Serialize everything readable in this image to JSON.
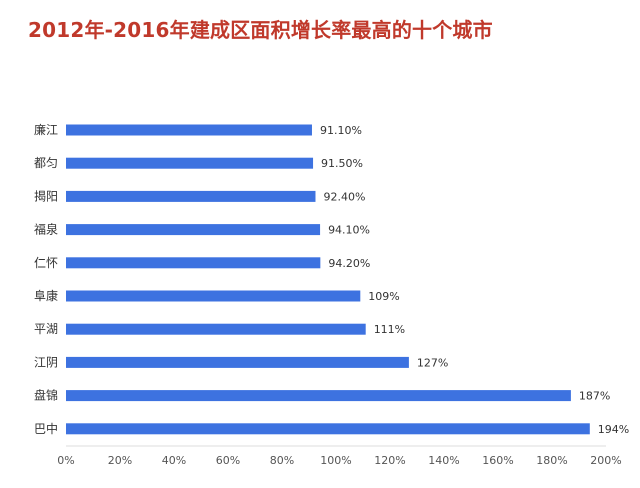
{
  "title": "2012年-2016年建成区面积增长率最高的十个城市",
  "chart_data": {
    "type": "bar",
    "orientation": "horizontal",
    "categories": [
      "廉江",
      "都匀",
      "揭阳",
      "福泉",
      "仁怀",
      "阜康",
      "平湖",
      "江阴",
      "盘锦",
      "巴中"
    ],
    "values": [
      91.1,
      91.5,
      92.4,
      94.1,
      94.2,
      109,
      111,
      127,
      187,
      194
    ],
    "value_labels": [
      "91.10%",
      "91.50%",
      "92.40%",
      "94.10%",
      "94.20%",
      "109%",
      "111%",
      "127%",
      "187%",
      "194%"
    ],
    "xlim": [
      0,
      200
    ],
    "xticks": [
      0,
      20,
      40,
      60,
      80,
      100,
      120,
      140,
      160,
      180,
      200
    ],
    "xtick_labels": [
      "0%",
      "20%",
      "40%",
      "60%",
      "80%",
      "100%",
      "120%",
      "140%",
      "160%",
      "180%",
      "200%"
    ],
    "bar_color": "#3d72e0",
    "title_color": "#c0392b",
    "grid": false,
    "legend": "none"
  }
}
